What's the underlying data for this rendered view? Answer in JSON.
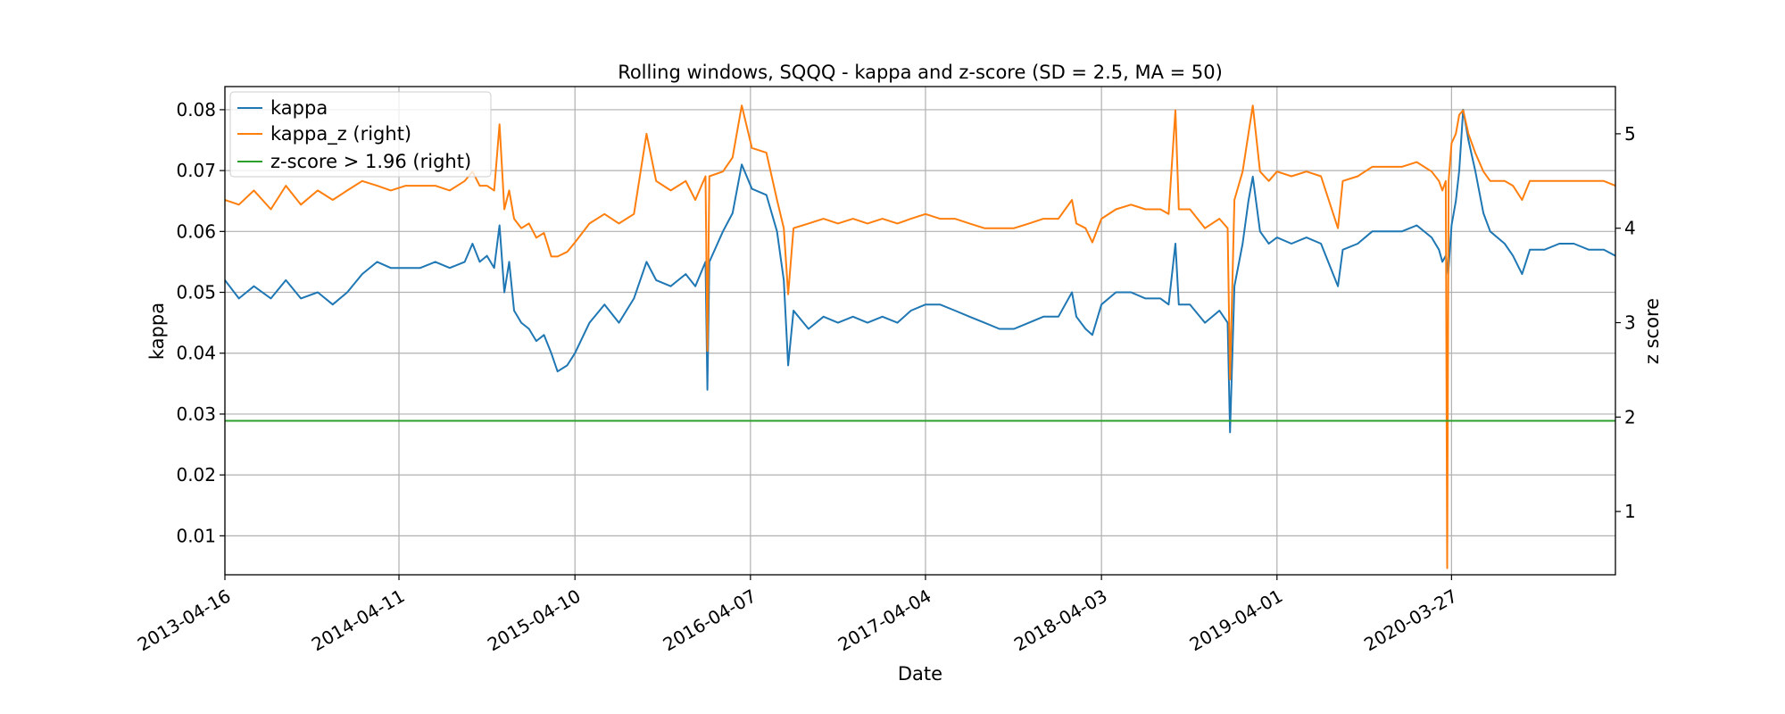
{
  "chart_data": {
    "type": "line",
    "title": "Rolling windows, SQQQ - kappa and z-score (SD = 2.5, MA = 50)",
    "xlabel": "Date",
    "ylabel": "kappa",
    "ylabel_right": "z score",
    "x_ticks": [
      "2013-04-16",
      "2014-04-11",
      "2015-04-10",
      "2016-04-07",
      "2017-04-04",
      "2018-04-03",
      "2019-04-01",
      "2020-03-27"
    ],
    "xlim": [
      "2013-04-16",
      "2021-03-01"
    ],
    "ylim": [
      0.0036,
      0.0838
    ],
    "ylim_right": [
      0.33,
      5.5
    ],
    "y_ticks": [
      "0.01",
      "0.02",
      "0.03",
      "0.04",
      "0.05",
      "0.06",
      "0.07",
      "0.08"
    ],
    "y_ticks_right": [
      "1",
      "2",
      "3",
      "4",
      "5"
    ],
    "grid": true,
    "legend_position": "top-left",
    "series": [
      {
        "name": "kappa",
        "axis": "left",
        "color": "#1f77b4",
        "points": [
          [
            "2013-04-16",
            0.052
          ],
          [
            "2013-05-15",
            0.049
          ],
          [
            "2013-06-15",
            0.051
          ],
          [
            "2013-07-20",
            0.049
          ],
          [
            "2013-08-20",
            0.052
          ],
          [
            "2013-09-20",
            0.049
          ],
          [
            "2013-10-25",
            0.05
          ],
          [
            "2013-11-25",
            0.048
          ],
          [
            "2013-12-25",
            0.05
          ],
          [
            "2014-01-25",
            0.053
          ],
          [
            "2014-02-25",
            0.055
          ],
          [
            "2014-03-25",
            0.054
          ],
          [
            "2014-04-25",
            0.054
          ],
          [
            "2014-05-25",
            0.054
          ],
          [
            "2014-06-25",
            0.055
          ],
          [
            "2014-07-25",
            0.054
          ],
          [
            "2014-08-25",
            0.055
          ],
          [
            "2014-09-10",
            0.058
          ],
          [
            "2014-09-25",
            0.055
          ],
          [
            "2014-10-10",
            0.056
          ],
          [
            "2014-10-25",
            0.054
          ],
          [
            "2014-11-05",
            0.061
          ],
          [
            "2014-11-15",
            0.05
          ],
          [
            "2014-11-25",
            0.055
          ],
          [
            "2014-12-05",
            0.047
          ],
          [
            "2014-12-20",
            0.045
          ],
          [
            "2015-01-05",
            0.044
          ],
          [
            "2015-01-20",
            0.042
          ],
          [
            "2015-02-05",
            0.043
          ],
          [
            "2015-02-20",
            0.04
          ],
          [
            "2015-03-05",
            0.037
          ],
          [
            "2015-03-25",
            0.038
          ],
          [
            "2015-04-10",
            0.04
          ],
          [
            "2015-05-10",
            0.045
          ],
          [
            "2015-06-10",
            0.048
          ],
          [
            "2015-07-10",
            0.045
          ],
          [
            "2015-08-10",
            0.049
          ],
          [
            "2015-09-05",
            0.055
          ],
          [
            "2015-09-25",
            0.052
          ],
          [
            "2015-10-25",
            0.051
          ],
          [
            "2015-11-25",
            0.053
          ],
          [
            "2015-12-15",
            0.051
          ],
          [
            "2016-01-05",
            0.055
          ],
          [
            "2016-01-09",
            0.034
          ],
          [
            "2016-01-13",
            0.055
          ],
          [
            "2016-02-10",
            0.06
          ],
          [
            "2016-03-01",
            0.063
          ],
          [
            "2016-03-20",
            0.071
          ],
          [
            "2016-04-10",
            0.067
          ],
          [
            "2016-05-10",
            0.066
          ],
          [
            "2016-06-01",
            0.06
          ],
          [
            "2016-06-15",
            0.052
          ],
          [
            "2016-06-24",
            0.038
          ],
          [
            "2016-07-05",
            0.047
          ],
          [
            "2016-08-05",
            0.044
          ],
          [
            "2016-09-05",
            0.046
          ],
          [
            "2016-10-05",
            0.045
          ],
          [
            "2016-11-05",
            0.046
          ],
          [
            "2016-12-05",
            0.045
          ],
          [
            "2017-01-05",
            0.046
          ],
          [
            "2017-02-05",
            0.045
          ],
          [
            "2017-03-05",
            0.047
          ],
          [
            "2017-04-04",
            0.048
          ],
          [
            "2017-05-04",
            0.048
          ],
          [
            "2017-06-04",
            0.047
          ],
          [
            "2017-07-04",
            0.046
          ],
          [
            "2017-08-04",
            0.045
          ],
          [
            "2017-09-04",
            0.044
          ],
          [
            "2017-10-04",
            0.044
          ],
          [
            "2017-11-04",
            0.045
          ],
          [
            "2017-12-04",
            0.046
          ],
          [
            "2018-01-04",
            0.046
          ],
          [
            "2018-02-01",
            0.05
          ],
          [
            "2018-02-10",
            0.046
          ],
          [
            "2018-03-01",
            0.044
          ],
          [
            "2018-03-15",
            0.043
          ],
          [
            "2018-04-03",
            0.048
          ],
          [
            "2018-05-03",
            0.05
          ],
          [
            "2018-06-03",
            0.05
          ],
          [
            "2018-07-03",
            0.049
          ],
          [
            "2018-08-03",
            0.049
          ],
          [
            "2018-08-20",
            0.048
          ],
          [
            "2018-09-03",
            0.058
          ],
          [
            "2018-09-10",
            0.048
          ],
          [
            "2018-10-03",
            0.048
          ],
          [
            "2018-11-03",
            0.045
          ],
          [
            "2018-12-03",
            0.047
          ],
          [
            "2018-12-20",
            0.045
          ],
          [
            "2018-12-25",
            0.027
          ],
          [
            "2019-01-03",
            0.051
          ],
          [
            "2019-01-20",
            0.058
          ],
          [
            "2019-02-01",
            0.065
          ],
          [
            "2019-02-10",
            0.069
          ],
          [
            "2019-02-25",
            0.06
          ],
          [
            "2019-03-15",
            0.058
          ],
          [
            "2019-04-01",
            0.059
          ],
          [
            "2019-05-01",
            0.058
          ],
          [
            "2019-06-01",
            0.059
          ],
          [
            "2019-07-01",
            0.058
          ],
          [
            "2019-08-05",
            0.051
          ],
          [
            "2019-08-15",
            0.057
          ],
          [
            "2019-09-15",
            0.058
          ],
          [
            "2019-10-15",
            0.06
          ],
          [
            "2019-11-15",
            0.06
          ],
          [
            "2019-12-15",
            0.06
          ],
          [
            "2020-01-15",
            0.061
          ],
          [
            "2020-02-15",
            0.059
          ],
          [
            "2020-03-01",
            0.057
          ],
          [
            "2020-03-08",
            0.055
          ],
          [
            "2020-03-15",
            0.056
          ],
          [
            "2020-03-20",
            0.053
          ],
          [
            "2020-03-27",
            0.061
          ],
          [
            "2020-04-05",
            0.065
          ],
          [
            "2020-04-12",
            0.07
          ],
          [
            "2020-04-20",
            0.08
          ],
          [
            "2020-05-01",
            0.075
          ],
          [
            "2020-05-15",
            0.07
          ],
          [
            "2020-06-01",
            0.063
          ],
          [
            "2020-06-15",
            0.06
          ],
          [
            "2020-07-15",
            0.058
          ],
          [
            "2020-08-01",
            0.056
          ],
          [
            "2020-08-20",
            0.053
          ],
          [
            "2020-09-05",
            0.057
          ],
          [
            "2020-10-05",
            0.057
          ],
          [
            "2020-11-05",
            0.058
          ],
          [
            "2020-12-05",
            0.058
          ],
          [
            "2021-01-05",
            0.057
          ],
          [
            "2021-02-05",
            0.057
          ],
          [
            "2021-03-01",
            0.056
          ]
        ]
      },
      {
        "name": "kappa_z (right)",
        "axis": "right",
        "color": "#ff7f0e",
        "points": [
          [
            "2013-04-16",
            4.3
          ],
          [
            "2013-05-15",
            4.25
          ],
          [
            "2013-06-15",
            4.4
          ],
          [
            "2013-07-20",
            4.2
          ],
          [
            "2013-08-20",
            4.45
          ],
          [
            "2013-09-20",
            4.25
          ],
          [
            "2013-10-25",
            4.4
          ],
          [
            "2013-11-25",
            4.3
          ],
          [
            "2013-12-25",
            4.4
          ],
          [
            "2014-01-25",
            4.5
          ],
          [
            "2014-02-25",
            4.45
          ],
          [
            "2014-03-25",
            4.4
          ],
          [
            "2014-04-25",
            4.45
          ],
          [
            "2014-05-25",
            4.45
          ],
          [
            "2014-06-25",
            4.45
          ],
          [
            "2014-07-25",
            4.4
          ],
          [
            "2014-08-25",
            4.5
          ],
          [
            "2014-09-10",
            4.6
          ],
          [
            "2014-09-25",
            4.45
          ],
          [
            "2014-10-10",
            4.45
          ],
          [
            "2014-10-25",
            4.4
          ],
          [
            "2014-11-05",
            5.1
          ],
          [
            "2014-11-15",
            4.2
          ],
          [
            "2014-11-25",
            4.4
          ],
          [
            "2014-12-05",
            4.1
          ],
          [
            "2014-12-20",
            4.0
          ],
          [
            "2015-01-05",
            4.05
          ],
          [
            "2015-01-20",
            3.9
          ],
          [
            "2015-02-05",
            3.95
          ],
          [
            "2015-02-20",
            3.7
          ],
          [
            "2015-03-05",
            3.7
          ],
          [
            "2015-03-25",
            3.75
          ],
          [
            "2015-04-10",
            3.85
          ],
          [
            "2015-05-10",
            4.05
          ],
          [
            "2015-06-10",
            4.15
          ],
          [
            "2015-07-10",
            4.05
          ],
          [
            "2015-08-10",
            4.15
          ],
          [
            "2015-09-05",
            5.0
          ],
          [
            "2015-09-25",
            4.5
          ],
          [
            "2015-10-25",
            4.4
          ],
          [
            "2015-11-25",
            4.5
          ],
          [
            "2015-12-15",
            4.3
          ],
          [
            "2016-01-05",
            4.55
          ],
          [
            "2016-01-09",
            2.7
          ],
          [
            "2016-01-13",
            4.55
          ],
          [
            "2016-02-10",
            4.6
          ],
          [
            "2016-03-01",
            4.75
          ],
          [
            "2016-03-20",
            5.3
          ],
          [
            "2016-04-10",
            4.85
          ],
          [
            "2016-05-10",
            4.8
          ],
          [
            "2016-06-01",
            4.3
          ],
          [
            "2016-06-15",
            4.0
          ],
          [
            "2016-06-24",
            3.3
          ],
          [
            "2016-07-05",
            4.0
          ],
          [
            "2016-08-05",
            4.05
          ],
          [
            "2016-09-05",
            4.1
          ],
          [
            "2016-10-05",
            4.05
          ],
          [
            "2016-11-05",
            4.1
          ],
          [
            "2016-12-05",
            4.05
          ],
          [
            "2017-01-05",
            4.1
          ],
          [
            "2017-02-05",
            4.05
          ],
          [
            "2017-03-05",
            4.1
          ],
          [
            "2017-04-04",
            4.15
          ],
          [
            "2017-05-04",
            4.1
          ],
          [
            "2017-06-04",
            4.1
          ],
          [
            "2017-07-04",
            4.05
          ],
          [
            "2017-08-04",
            4.0
          ],
          [
            "2017-09-04",
            4.0
          ],
          [
            "2017-10-04",
            4.0
          ],
          [
            "2017-11-04",
            4.05
          ],
          [
            "2017-12-04",
            4.1
          ],
          [
            "2018-01-04",
            4.1
          ],
          [
            "2018-02-01",
            4.3
          ],
          [
            "2018-02-10",
            4.05
          ],
          [
            "2018-03-01",
            4.0
          ],
          [
            "2018-03-15",
            3.85
          ],
          [
            "2018-04-03",
            4.1
          ],
          [
            "2018-05-03",
            4.2
          ],
          [
            "2018-06-03",
            4.25
          ],
          [
            "2018-07-03",
            4.2
          ],
          [
            "2018-08-03",
            4.2
          ],
          [
            "2018-08-20",
            4.15
          ],
          [
            "2018-09-03",
            5.25
          ],
          [
            "2018-09-10",
            4.2
          ],
          [
            "2018-10-03",
            4.2
          ],
          [
            "2018-11-03",
            4.0
          ],
          [
            "2018-12-03",
            4.1
          ],
          [
            "2018-12-20",
            4.0
          ],
          [
            "2018-12-25",
            2.4
          ],
          [
            "2019-01-03",
            4.3
          ],
          [
            "2019-01-20",
            4.6
          ],
          [
            "2019-02-01",
            5.0
          ],
          [
            "2019-02-10",
            5.3
          ],
          [
            "2019-02-25",
            4.6
          ],
          [
            "2019-03-15",
            4.5
          ],
          [
            "2019-04-01",
            4.6
          ],
          [
            "2019-05-01",
            4.55
          ],
          [
            "2019-06-01",
            4.6
          ],
          [
            "2019-07-01",
            4.55
          ],
          [
            "2019-08-05",
            4.0
          ],
          [
            "2019-08-15",
            4.5
          ],
          [
            "2019-09-15",
            4.55
          ],
          [
            "2019-10-15",
            4.65
          ],
          [
            "2019-11-15",
            4.65
          ],
          [
            "2019-12-15",
            4.65
          ],
          [
            "2020-01-15",
            4.7
          ],
          [
            "2020-02-15",
            4.6
          ],
          [
            "2020-03-01",
            4.5
          ],
          [
            "2020-03-08",
            4.4
          ],
          [
            "2020-03-15",
            4.5
          ],
          [
            "2020-03-18",
            0.4
          ],
          [
            "2020-03-21",
            4.5
          ],
          [
            "2020-03-27",
            4.9
          ],
          [
            "2020-04-05",
            5.0
          ],
          [
            "2020-04-12",
            5.2
          ],
          [
            "2020-04-20",
            5.25
          ],
          [
            "2020-05-01",
            5.0
          ],
          [
            "2020-05-15",
            4.8
          ],
          [
            "2020-06-01",
            4.6
          ],
          [
            "2020-06-15",
            4.5
          ],
          [
            "2020-07-15",
            4.5
          ],
          [
            "2020-08-01",
            4.45
          ],
          [
            "2020-08-20",
            4.3
          ],
          [
            "2020-09-05",
            4.5
          ],
          [
            "2020-10-05",
            4.5
          ],
          [
            "2020-11-05",
            4.5
          ],
          [
            "2020-12-05",
            4.5
          ],
          [
            "2021-01-05",
            4.5
          ],
          [
            "2021-02-05",
            4.5
          ],
          [
            "2021-03-01",
            4.45
          ]
        ]
      },
      {
        "name": "z-score > 1.96 (right)",
        "axis": "right",
        "color": "#2ca02c",
        "points": [
          [
            "2013-04-16",
            1.96
          ],
          [
            "2021-03-01",
            1.96
          ]
        ]
      }
    ]
  }
}
